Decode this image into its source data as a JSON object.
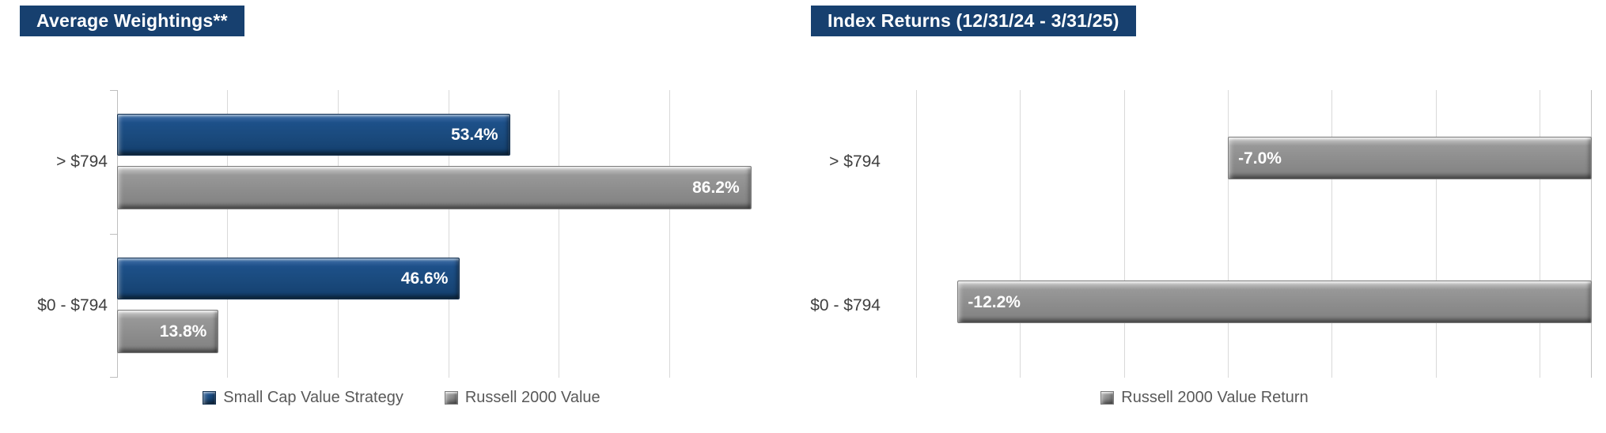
{
  "page": {
    "background": "#FFFFFF"
  },
  "chart_data": [
    {
      "type": "bar",
      "orientation": "horizontal",
      "title": "Average Weightings**",
      "categories": [
        "> $794",
        "$0 - $794"
      ],
      "series": [
        {
          "name": "Small Cap Value Strategy",
          "values": [
            53.4,
            46.6
          ],
          "labels": [
            "53.4%",
            "46.6%"
          ],
          "color": "#1C4E87",
          "style": "navy-bevel",
          "marker": "navy-square-icon"
        },
        {
          "name": "Russell 2000 Value",
          "values": [
            86.2,
            13.8
          ],
          "labels": [
            "86.2%",
            "13.8%"
          ],
          "color": "#8A8A8A",
          "style": "gray-bevel",
          "marker": "gray-square-icon"
        }
      ],
      "axis": {
        "min": 0,
        "max": 90,
        "gridlines": [
          15,
          30,
          45,
          60,
          75
        ],
        "grid_on": true
      },
      "legend_position": "bottom",
      "value_format": "percent",
      "data_labels": "inside-end"
    },
    {
      "type": "bar",
      "orientation": "horizontal",
      "title": "Index Returns (12/31/24 - 3/31/25)",
      "categories": [
        "> $794",
        "$0 - $794"
      ],
      "series": [
        {
          "name": "Russell 2000 Value Return",
          "values": [
            -7.0,
            -12.2
          ],
          "labels": [
            "-7.0%",
            "-12.2%"
          ],
          "color": "#8A8A8A",
          "style": "gray-bevel",
          "marker": "gray-square-icon"
        }
      ],
      "axis": {
        "min": -13.5,
        "max": 0,
        "gridlines": [
          -13,
          -11,
          -9,
          -7,
          -5,
          -3,
          -1
        ],
        "grid_on": true
      },
      "legend_position": "bottom",
      "value_format": "percent",
      "data_labels": "inside-end"
    }
  ],
  "colors": {
    "title_bg": "#17406F",
    "title_text": "#FFFFFF",
    "bar_navy": "#1C4E87",
    "bar_gray": "#8A8A8A",
    "gridline": "#D9D9D9",
    "axis_line": "#BFBFBF",
    "category_label": "#404040",
    "data_label": "#FFFFFF",
    "legend_text": "#595959"
  }
}
